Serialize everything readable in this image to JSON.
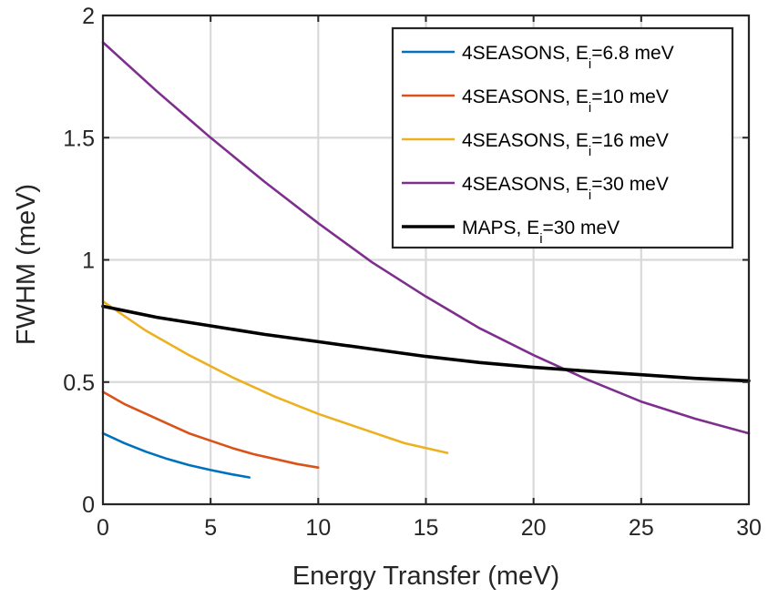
{
  "chart_data": {
    "type": "line",
    "title": "",
    "xlabel": "Energy Transfer (meV)",
    "ylabel": "FWHM (meV)",
    "xlim": [
      0,
      30
    ],
    "ylim": [
      0,
      2
    ],
    "xticks": [
      0,
      5,
      10,
      15,
      20,
      25,
      30
    ],
    "yticks": [
      0,
      0.5,
      1,
      1.5,
      2
    ],
    "xtick_labels": [
      "0",
      "5",
      "10",
      "15",
      "20",
      "25",
      "30"
    ],
    "ytick_labels": [
      "0",
      "0.5",
      "1",
      "1.5",
      "2"
    ],
    "grid": true,
    "legend_position": "top-right",
    "series": [
      {
        "name": "4SEASONS, Ei=6.8 meV",
        "legend_prefix": "4SEASONS, E",
        "legend_sub": "i",
        "legend_suffix": "=6.8 meV",
        "color": "#0072BD",
        "x": [
          0,
          1,
          2,
          3,
          4,
          5,
          6,
          6.8
        ],
        "y": [
          0.29,
          0.25,
          0.215,
          0.185,
          0.16,
          0.14,
          0.122,
          0.11
        ]
      },
      {
        "name": "4SEASONS, Ei=10 meV",
        "legend_prefix": "4SEASONS, E",
        "legend_sub": "i",
        "legend_suffix": "=10 meV",
        "color": "#D95319",
        "x": [
          0,
          1,
          2,
          3,
          4,
          5,
          6,
          7,
          8,
          9,
          10
        ],
        "y": [
          0.46,
          0.41,
          0.37,
          0.33,
          0.29,
          0.26,
          0.23,
          0.205,
          0.185,
          0.165,
          0.15
        ]
      },
      {
        "name": "4SEASONS, Ei=16 meV",
        "legend_prefix": "4SEASONS, E",
        "legend_sub": "i",
        "legend_suffix": "=16 meV",
        "color": "#EDB120",
        "x": [
          0,
          2,
          4,
          6,
          8,
          10,
          12,
          14,
          16
        ],
        "y": [
          0.83,
          0.71,
          0.61,
          0.52,
          0.44,
          0.37,
          0.31,
          0.25,
          0.21
        ]
      },
      {
        "name": "4SEASONS, Ei=30 meV",
        "legend_prefix": "4SEASONS, E",
        "legend_sub": "i",
        "legend_suffix": "=30 meV",
        "color": "#7E2F8E",
        "x": [
          0,
          2.5,
          5,
          7.5,
          10,
          12.5,
          15,
          17.5,
          20,
          22.5,
          25,
          27.5,
          30
        ],
        "y": [
          1.89,
          1.69,
          1.5,
          1.32,
          1.15,
          0.99,
          0.85,
          0.72,
          0.61,
          0.51,
          0.42,
          0.35,
          0.29
        ]
      },
      {
        "name": "MAPS, Ei=30 meV",
        "legend_prefix": "MAPS, E",
        "legend_sub": "i",
        "legend_suffix": "=30 meV",
        "color": "#000000",
        "x": [
          0,
          2.5,
          5,
          7.5,
          10,
          12.5,
          15,
          17.5,
          20,
          22.5,
          25,
          27.5,
          30
        ],
        "y": [
          0.81,
          0.765,
          0.73,
          0.695,
          0.665,
          0.635,
          0.605,
          0.58,
          0.56,
          0.545,
          0.53,
          0.515,
          0.505
        ]
      }
    ]
  }
}
